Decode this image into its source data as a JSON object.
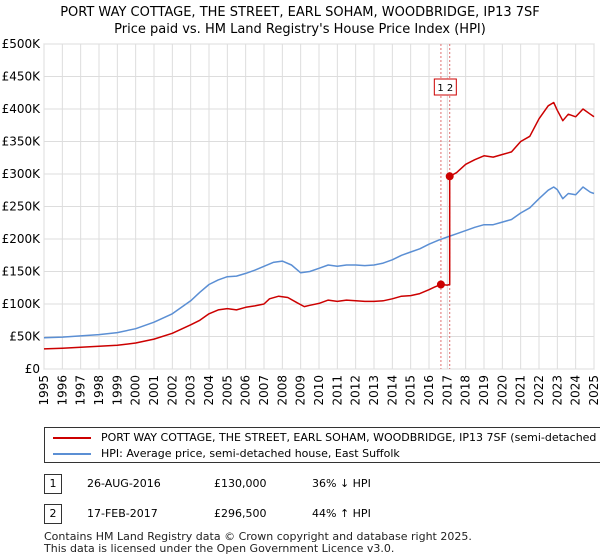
{
  "title": {
    "line1": "PORT WAY COTTAGE, THE STREET, EARL SOHAM, WOODBRIDGE, IP13 7SF",
    "line2": "Price paid vs. HM Land Registry's House Price Index (HPI)"
  },
  "chart_data": {
    "type": "line",
    "xlim": [
      1995,
      2025
    ],
    "ylim": [
      0,
      500000
    ],
    "x_ticks": [
      1995,
      1996,
      1997,
      1998,
      1999,
      2000,
      2001,
      2002,
      2003,
      2004,
      2005,
      2006,
      2007,
      2008,
      2009,
      2010,
      2011,
      2012,
      2013,
      2014,
      2015,
      2016,
      2017,
      2018,
      2019,
      2020,
      2021,
      2022,
      2023,
      2024,
      2025
    ],
    "y_ticks": [
      0,
      50000,
      100000,
      150000,
      200000,
      250000,
      300000,
      350000,
      400000,
      450000,
      500000
    ],
    "y_tick_labels": [
      "£0",
      "£50K",
      "£100K",
      "£150K",
      "£200K",
      "£250K",
      "£300K",
      "£350K",
      "£400K",
      "£450K",
      "£500K"
    ],
    "grid": true,
    "series": [
      {
        "name": "PORT WAY COTTAGE, THE STREET, EARL SOHAM, WOODBRIDGE, IP13 7SF (semi-detached house)",
        "color": "#cc0000",
        "x": [
          1995.0,
          1996.0,
          1997.0,
          1998.0,
          1999.0,
          2000.0,
          2001.0,
          2002.0,
          2003.0,
          2003.5,
          2004.0,
          2004.5,
          2005.0,
          2005.5,
          2006.0,
          2006.5,
          2007.0,
          2007.3,
          2007.8,
          2008.3,
          2008.8,
          2009.2,
          2009.5,
          2010.0,
          2010.5,
          2011.0,
          2011.5,
          2012.0,
          2012.5,
          2013.0,
          2013.5,
          2014.0,
          2014.5,
          2015.0,
          2015.5,
          2016.0,
          2016.3,
          2016.65,
          2017.0,
          2017.13,
          2017.13,
          2017.5,
          2018.0,
          2018.5,
          2019.0,
          2019.5,
          2020.0,
          2020.5,
          2021.0,
          2021.5,
          2022.0,
          2022.5,
          2022.8,
          2023.0,
          2023.3,
          2023.6,
          2024.0,
          2024.4,
          2024.8,
          2025.0
        ],
        "y": [
          31000,
          32000,
          33500,
          35000,
          36500,
          40000,
          46000,
          55000,
          68000,
          75000,
          85000,
          91000,
          93000,
          91000,
          95000,
          97000,
          100000,
          108000,
          112000,
          110000,
          102000,
          96000,
          98000,
          101000,
          106000,
          104000,
          106000,
          105000,
          104000,
          104000,
          105000,
          108000,
          112000,
          113000,
          116000,
          122000,
          126000,
          130000,
          129000,
          130000,
          296500,
          302000,
          315000,
          322000,
          328000,
          326000,
          330000,
          334000,
          350000,
          358000,
          385000,
          405000,
          410000,
          398000,
          382000,
          392000,
          388000,
          400000,
          392000,
          388000
        ]
      },
      {
        "name": "HPI: Average price, semi-detached house, East Suffolk",
        "color": "#5b8fd4",
        "x": [
          1995.0,
          1996.0,
          1997.0,
          1998.0,
          1999.0,
          2000.0,
          2001.0,
          2002.0,
          2003.0,
          2003.5,
          2004.0,
          2004.5,
          2005.0,
          2005.5,
          2006.0,
          2006.5,
          2007.0,
          2007.5,
          2008.0,
          2008.5,
          2009.0,
          2009.5,
          2010.0,
          2010.5,
          2011.0,
          2011.5,
          2012.0,
          2012.5,
          2013.0,
          2013.5,
          2014.0,
          2014.5,
          2015.0,
          2015.5,
          2016.0,
          2016.5,
          2017.0,
          2017.5,
          2018.0,
          2018.5,
          2019.0,
          2019.5,
          2020.0,
          2020.5,
          2021.0,
          2021.5,
          2022.0,
          2022.5,
          2022.8,
          2023.0,
          2023.3,
          2023.6,
          2024.0,
          2024.4,
          2024.8,
          2025.0
        ],
        "y": [
          48000,
          49000,
          51000,
          53000,
          56000,
          62000,
          72000,
          85000,
          105000,
          118000,
          130000,
          137000,
          142000,
          143000,
          147000,
          152000,
          158000,
          164000,
          166000,
          160000,
          148000,
          150000,
          155000,
          160000,
          158000,
          160000,
          160000,
          159000,
          160000,
          163000,
          168000,
          175000,
          180000,
          185000,
          192000,
          198000,
          203000,
          208000,
          213000,
          218000,
          222000,
          222000,
          226000,
          230000,
          240000,
          248000,
          262000,
          275000,
          280000,
          276000,
          262000,
          270000,
          268000,
          280000,
          272000,
          270000
        ]
      }
    ],
    "sale_markers": [
      {
        "label": "1",
        "x": 2016.65,
        "y": 130000
      },
      {
        "label": "2",
        "x": 2017.13,
        "y": 296500
      }
    ],
    "marker_badge": "1 2"
  },
  "legend": {
    "entries": [
      {
        "label": "PORT WAY COTTAGE, THE STREET, EARL SOHAM, WOODBRIDGE, IP13 7SF (semi-detached house)",
        "color": "#cc0000"
      },
      {
        "label": "HPI: Average price, semi-detached house, East Suffolk",
        "color": "#5b8fd4"
      }
    ]
  },
  "sales": [
    {
      "num": "1",
      "date": "26-AUG-2016",
      "price": "£130,000",
      "hpi": "36% ↓ HPI"
    },
    {
      "num": "2",
      "date": "17-FEB-2017",
      "price": "£296,500",
      "hpi": "44% ↑ HPI"
    }
  ],
  "footer": {
    "line1": "Contains HM Land Registry data © Crown copyright and database right 2025.",
    "line2": "This data is licensed under the Open Government Licence v3.0."
  }
}
